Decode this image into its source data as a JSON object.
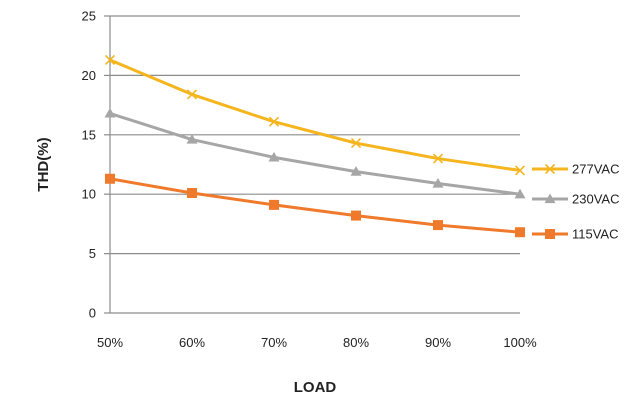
{
  "chart_data": {
    "type": "line",
    "categories": [
      "50%",
      "60%",
      "70%",
      "80%",
      "90%",
      "100%"
    ],
    "series": [
      {
        "name": "277VAC",
        "values": [
          21.3,
          18.4,
          16.1,
          14.3,
          13.0,
          12.0
        ],
        "color": "#F5B51E",
        "marker": "x"
      },
      {
        "name": "230VAC",
        "values": [
          16.8,
          14.6,
          13.1,
          11.9,
          10.9,
          10.0
        ],
        "color": "#A6A6A6",
        "marker": "triangle"
      },
      {
        "name": "115VAC",
        "values": [
          11.3,
          10.1,
          9.1,
          8.2,
          7.4,
          6.8
        ],
        "color": "#F07A2B",
        "marker": "square"
      }
    ],
    "xlabel": "LOAD",
    "ylabel": "THD(%)",
    "ylim": [
      0,
      25
    ],
    "yticks": [
      0,
      5,
      10,
      15,
      20,
      25
    ],
    "grid": true,
    "legend": "right"
  }
}
